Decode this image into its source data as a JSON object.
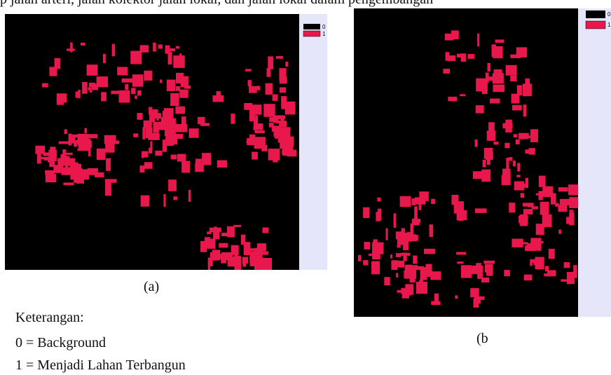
{
  "header": {
    "text": "p jalan arteri, jalan kolektor jalan lokal, dan jalan lokal dalam pengembangan"
  },
  "figure_a": {
    "legend": [
      "0",
      "1"
    ],
    "caption": "(a)"
  },
  "figure_b": {
    "legend": [
      "0",
      "1"
    ],
    "caption": "(b"
  },
  "notes": {
    "title": "Keterangan:",
    "items": [
      "0 = Background",
      "1 = Menjadi Lahan Terbangun"
    ]
  }
}
